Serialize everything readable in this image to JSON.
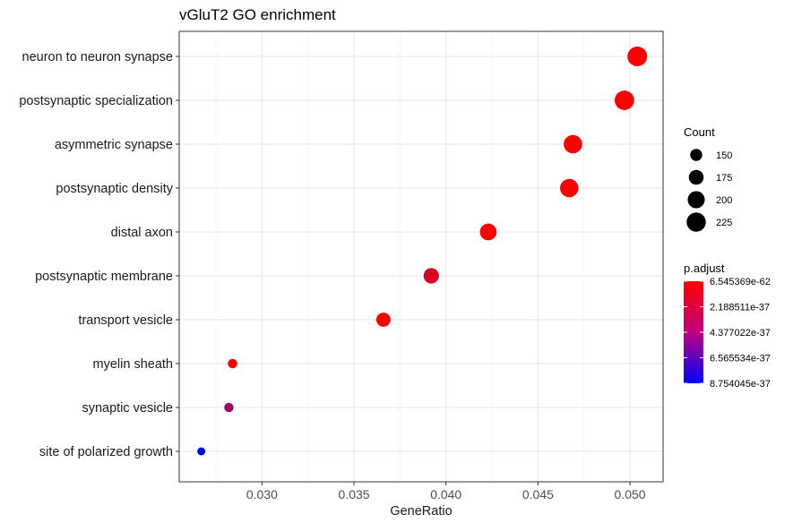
{
  "chart_data": {
    "type": "scatter",
    "title": "vGluT2 GO enrichment",
    "xlabel": "GeneRatio",
    "ylabel": "",
    "xlim": [
      0.0255,
      0.0518
    ],
    "x_ticks": [
      0.03,
      0.035,
      0.04,
      0.045,
      0.05
    ],
    "x_tick_labels": [
      "0.030",
      "0.035",
      "0.040",
      "0.045",
      "0.050"
    ],
    "grid": true,
    "categories": [
      "neuron to neuron synapse",
      "postsynaptic specialization",
      "asymmetric synapse",
      "postsynaptic density",
      "distal axon",
      "postsynaptic membrane",
      "transport vesicle",
      "myelin sheath",
      "synaptic vesicle",
      "site of polarized growth"
    ],
    "points": [
      {
        "term": "neuron to neuron synapse",
        "gene_ratio": 0.0504,
        "count": 232,
        "p_adjust": 6.545369e-62
      },
      {
        "term": "postsynaptic specialization",
        "gene_ratio": 0.0497,
        "count": 229,
        "p_adjust": 6.6e-50
      },
      {
        "term": "asymmetric synapse",
        "gene_ratio": 0.0469,
        "count": 216,
        "p_adjust": 5e-48
      },
      {
        "term": "postsynaptic density",
        "gene_ratio": 0.0467,
        "count": 215,
        "p_adjust": 2e-47
      },
      {
        "term": "distal axon",
        "gene_ratio": 0.0423,
        "count": 195,
        "p_adjust": 4e-42
      },
      {
        "term": "postsynaptic membrane",
        "gene_ratio": 0.0392,
        "count": 181,
        "p_adjust": 1.3e-37
      },
      {
        "term": "transport vesicle",
        "gene_ratio": 0.0366,
        "count": 169,
        "p_adjust": 3e-40
      },
      {
        "term": "myelin sheath",
        "gene_ratio": 0.0284,
        "count": 131,
        "p_adjust": 1e-40
      },
      {
        "term": "synaptic vesicle",
        "gene_ratio": 0.0282,
        "count": 130,
        "p_adjust": 3.3e-37
      },
      {
        "term": "site of polarized growth",
        "gene_ratio": 0.0267,
        "count": 123,
        "p_adjust": 8.754045e-37
      }
    ],
    "legend_size": {
      "title": "Count",
      "values": [
        150,
        175,
        200,
        225
      ],
      "labels": [
        "150",
        "175",
        "200",
        "225"
      ]
    },
    "legend_color": {
      "title": "p.adjust",
      "labels": [
        "6.545369e-62",
        "2.188511e-37",
        "4.377022e-37",
        "6.565534e-37",
        "8.754045e-37"
      ],
      "values": [
        6.545369e-62,
        2.188511e-37,
        4.377022e-37,
        6.565534e-37,
        8.754045e-37
      ],
      "low_color": "#ff0000",
      "high_color": "#0000ff"
    },
    "legend_placement": "right"
  }
}
